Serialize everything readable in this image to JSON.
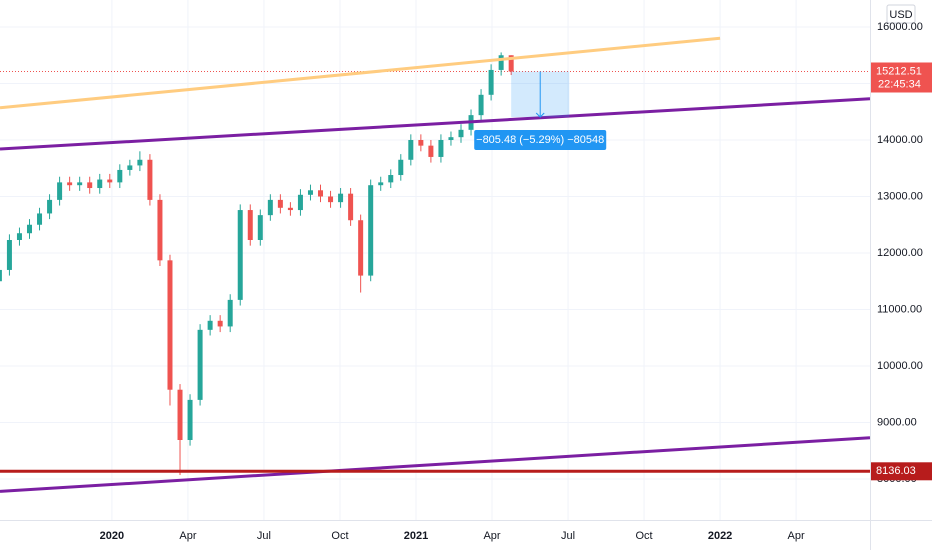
{
  "chart_data": {
    "type": "candlestick",
    "currency": "USD",
    "up_color": "#26a69a",
    "down_color": "#ef5350",
    "grid": true,
    "xlim": [
      2019.632,
      2022.493
    ],
    "ylim": [
      7274,
      16478
    ],
    "xticks": [
      2020,
      {
        "value": 2020.25,
        "label": "Apr"
      },
      {
        "value": 2020.5,
        "label": "Jul"
      },
      {
        "value": 2020.75,
        "label": "Oct"
      },
      2021,
      {
        "value": 2021.25,
        "label": "Apr"
      },
      {
        "value": 2021.5,
        "label": "Jul"
      },
      {
        "value": 2021.75,
        "label": "Oct"
      },
      2022,
      {
        "value": 2022.25,
        "label": "Apr"
      }
    ],
    "yticks": [
      {
        "value": 8000,
        "label": "8000.00"
      },
      {
        "value": 9000,
        "label": "9000.00"
      },
      {
        "value": 10000,
        "label": "10000.00"
      },
      {
        "value": 11000,
        "label": "11000.00"
      },
      {
        "value": 12000,
        "label": "12000.00"
      },
      {
        "value": 13000,
        "label": "13000.00"
      },
      {
        "value": 14000,
        "label": "14000.00"
      },
      {
        "value": 15000,
        "label": "15000.00"
      },
      {
        "value": 16000,
        "label": "16000.00"
      }
    ],
    "x": [
      2019.63,
      2019.663,
      2019.696,
      2019.729,
      2019.762,
      2019.795,
      2019.828,
      2019.861,
      2019.894,
      2019.927,
      2019.96,
      2019.993,
      2020.026,
      2020.059,
      2020.092,
      2020.125,
      2020.158,
      2020.191,
      2020.224,
      2020.257,
      2020.29,
      2020.323,
      2020.356,
      2020.389,
      2020.422,
      2020.455,
      2020.488,
      2020.521,
      2020.554,
      2020.587,
      2020.62,
      2020.653,
      2020.686,
      2020.719,
      2020.752,
      2020.785,
      2020.818,
      2020.851,
      2020.884,
      2020.917,
      2020.95,
      2020.983,
      2021.016,
      2021.049,
      2021.082,
      2021.115,
      2021.148,
      2021.181,
      2021.214,
      2021.247,
      2021.28,
      2021.313
    ],
    "open": [
      11500,
      11700,
      12230,
      12350,
      12500,
      12700,
      12940,
      13250,
      13200,
      13250,
      13150,
      13300,
      13250,
      13470,
      13550,
      13650,
      12940,
      11870,
      9580,
      8690,
      9400,
      10640,
      10800,
      10700,
      11170,
      12760,
      12230,
      12670,
      12940,
      12800,
      12760,
      13030,
      13110,
      13000,
      12900,
      13050,
      12580,
      11600,
      13200,
      13250,
      13380,
      13650,
      14000,
      13900,
      13700,
      14000,
      14050,
      14180,
      14440,
      14800,
      15240,
      15500
    ],
    "high": [
      11800,
      12330,
      12450,
      12600,
      12800,
      13040,
      13350,
      13350,
      13350,
      13350,
      13400,
      13400,
      13570,
      13650,
      13800,
      13750,
      13040,
      11970,
      9680,
      9500,
      10740,
      10900,
      10900,
      11270,
      12860,
      12860,
      12770,
      13040,
      13040,
      12900,
      13130,
      13210,
      13210,
      13100,
      13150,
      13150,
      12680,
      13300,
      13350,
      13480,
      13750,
      14100,
      14100,
      14000,
      14100,
      14150,
      14280,
      14540,
      14900,
      15340,
      15550,
      15500
    ],
    "low": [
      11400,
      11600,
      12130,
      12250,
      12400,
      12600,
      12840,
      13100,
      13100,
      13050,
      13050,
      13150,
      13150,
      13370,
      13450,
      12840,
      11770,
      9300,
      8070,
      8590,
      9300,
      10540,
      10600,
      10600,
      11070,
      12130,
      12130,
      12570,
      12700,
      12660,
      12660,
      12930,
      12900,
      12800,
      12800,
      12480,
      11300,
      11500,
      13100,
      13150,
      13280,
      13550,
      13800,
      13600,
      13600,
      13900,
      13950,
      14080,
      14340,
      14700,
      15140,
      15150
    ],
    "close": [
      11700,
      12230,
      12350,
      12500,
      12700,
      12940,
      13250,
      13200,
      13250,
      13150,
      13300,
      13250,
      13470,
      13550,
      13650,
      12940,
      11870,
      9580,
      8690,
      9400,
      10640,
      10800,
      10700,
      11170,
      12760,
      12230,
      12670,
      12940,
      12800,
      12760,
      13030,
      13110,
      13000,
      12900,
      13050,
      12580,
      11600,
      13200,
      13250,
      13380,
      13650,
      14000,
      13900,
      13700,
      14000,
      14050,
      14180,
      14440,
      14800,
      15240,
      15500,
      15212.51
    ],
    "lines": [
      {
        "color": "#ffcc80",
        "x": [
          2019.632,
          2022.0
        ],
        "y": [
          14570,
          15800
        ]
      },
      {
        "color": "#7b1fa2",
        "x": [
          2019.632,
          2022.493
        ],
        "y": [
          13840,
          14730
        ]
      },
      {
        "color": "#7b1fa2",
        "x": [
          2019.632,
          2022.493
        ],
        "y": [
          7780,
          8730
        ]
      }
    ],
    "level": {
      "value": 8136.03,
      "color": "#b71c1c"
    },
    "last_price": {
      "value": 15212.51,
      "countdown": "22:45:34",
      "color": "#ef5350"
    },
    "measure": {
      "x": [
        2021.313,
        2021.504
      ],
      "y": [
        15212.51,
        14407.03
      ],
      "label": "−805.48 (−5.29%) −80548",
      "color": "#2196f3"
    }
  }
}
